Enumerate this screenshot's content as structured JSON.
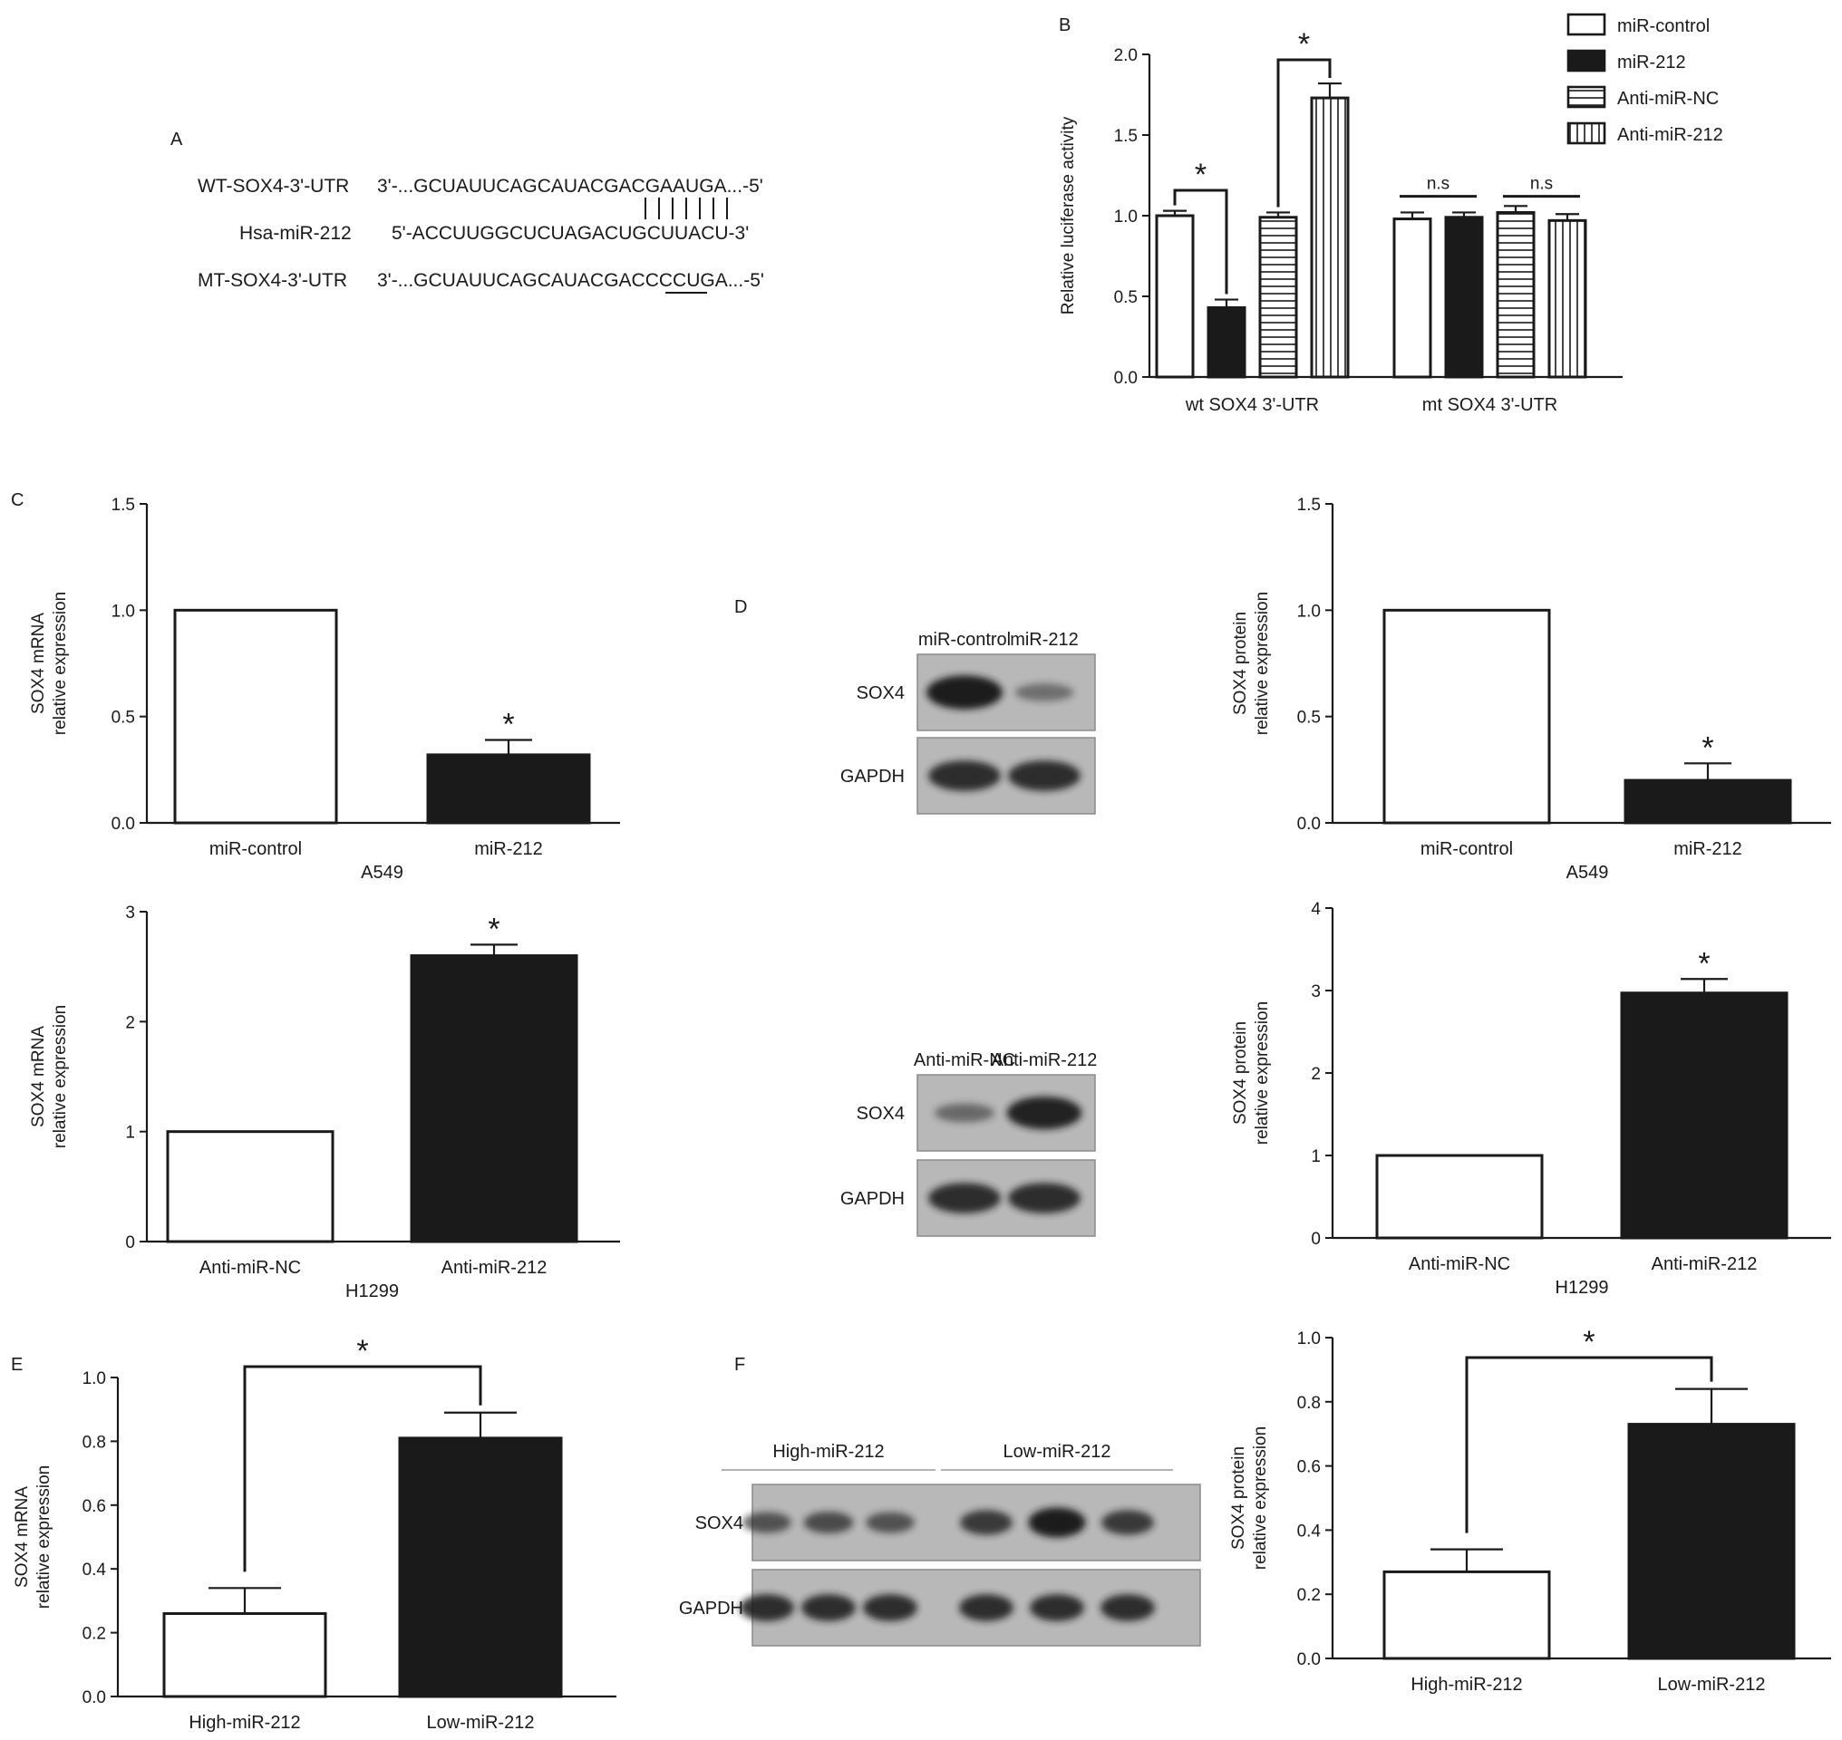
{
  "panel_letters": {
    "A": "A",
    "B": "B",
    "C": "C",
    "D": "D",
    "E": "E",
    "F": "F"
  },
  "panel_a": {
    "rows": [
      {
        "label": "WT-SOX4-3'-UTR",
        "sequence": "3'-...GCUAUUCAGCAUACGACGAAUGA...-5'"
      },
      {
        "label": "Hsa-miR-212",
        "sequence": "5'-ACCUUGGCUCUAGACUGCUUACU-3'"
      },
      {
        "label": "MT-SOX4-3'-UTR",
        "sequence": "3'-...GCUAUUCAGCAUACGACCCCUGA...-5'"
      }
    ],
    "pairing_marks": 7
  },
  "blots": {
    "d_top": {
      "lanes": [
        "miR-control",
        "miR-212"
      ],
      "rows": [
        "SOX4",
        "GAPDH"
      ],
      "sox4_band_intensity": [
        1.0,
        0.3
      ],
      "gapdh_band_intensity": [
        0.85,
        0.85
      ]
    },
    "d_bottom": {
      "lanes": [
        "Anti-miR-NC",
        "Anti-miR-212"
      ],
      "rows": [
        "SOX4",
        "GAPDH"
      ],
      "sox4_band_intensity": [
        0.35,
        0.95
      ],
      "gapdh_band_intensity": [
        0.85,
        0.85
      ]
    },
    "f": {
      "groups": [
        "High-miR-212",
        "Low-miR-212"
      ],
      "rows": [
        "SOX4",
        "GAPDH"
      ],
      "sox4_band_intensity": [
        0.55,
        0.6,
        0.55,
        0.75,
        1.0,
        0.75
      ],
      "gapdh_band_intensity": [
        0.85,
        0.85,
        0.85,
        0.85,
        0.85,
        0.85
      ]
    }
  },
  "colors": {
    "ink": "#1a1a1a",
    "blot_bg": "#b8b8b8",
    "band": "#1e1e1e"
  },
  "chart_data": [
    {
      "id": "B",
      "type": "bar",
      "categories": [
        "wt SOX4 3'-UTR",
        "mt SOX4 3'-UTR"
      ],
      "ylabel": "Relative luciferase activity",
      "ylim": [
        0,
        2.0
      ],
      "yticks": [
        "0.0",
        "0.5",
        "1.0",
        "1.5",
        "2.0"
      ],
      "series": [
        {
          "name": "miR-control",
          "fill": "white",
          "values": [
            1.0,
            0.98
          ],
          "errors": [
            0.03,
            0.04
          ]
        },
        {
          "name": "miR-212",
          "fill": "black",
          "values": [
            0.43,
            0.99
          ],
          "errors": [
            0.05,
            0.03
          ]
        },
        {
          "name": "Anti-miR-NC",
          "fill": "hstripe",
          "values": [
            0.99,
            1.02
          ],
          "errors": [
            0.03,
            0.04
          ]
        },
        {
          "name": "Anti-miR-212",
          "fill": "vstripe",
          "values": [
            1.73,
            0.97
          ],
          "errors": [
            0.09,
            0.04
          ]
        }
      ],
      "legend": "top-right",
      "annotations": [
        "*",
        "*",
        "n.s",
        "n.s"
      ]
    },
    {
      "id": "C-top",
      "type": "bar",
      "categories": [
        "miR-control",
        "miR-212"
      ],
      "group": "A549",
      "ylabel": [
        "SOX4 mRNA",
        "relative expression"
      ],
      "ylim": [
        0,
        1.5
      ],
      "yticks": [
        "0.0",
        "0.5",
        "1.0",
        "1.5"
      ],
      "values": [
        1.0,
        0.32
      ],
      "errors": [
        0,
        0.07
      ],
      "fills": [
        "white",
        "black"
      ],
      "annotations": [
        "*"
      ]
    },
    {
      "id": "C-bottom",
      "type": "bar",
      "categories": [
        "Anti-miR-NC",
        "Anti-miR-212"
      ],
      "group": "H1299",
      "ylabel": [
        "SOX4 mRNA",
        "relative expression"
      ],
      "ylim": [
        0,
        3
      ],
      "yticks": [
        "0",
        "1",
        "2",
        "3"
      ],
      "values": [
        1.0,
        2.6
      ],
      "errors": [
        0,
        0.1
      ],
      "fills": [
        "white",
        "black"
      ],
      "annotations": [
        "*"
      ]
    },
    {
      "id": "D-top",
      "type": "bar",
      "categories": [
        "miR-control",
        "miR-212"
      ],
      "group": "A549",
      "ylabel": [
        "SOX4 protein",
        "relative expression"
      ],
      "ylim": [
        0,
        1.5
      ],
      "yticks": [
        "0.0",
        "0.5",
        "1.0",
        "1.5"
      ],
      "values": [
        1.0,
        0.2
      ],
      "errors": [
        0,
        0.08
      ],
      "fills": [
        "white",
        "black"
      ],
      "annotations": [
        "*"
      ]
    },
    {
      "id": "D-bottom",
      "type": "bar",
      "categories": [
        "Anti-miR-NC",
        "Anti-miR-212"
      ],
      "group": "H1299",
      "ylabel": [
        "SOX4 protein",
        "relative expression"
      ],
      "ylim": [
        0,
        4
      ],
      "yticks": [
        "0",
        "1",
        "2",
        "3",
        "4"
      ],
      "values": [
        1.0,
        2.97
      ],
      "errors": [
        0,
        0.17
      ],
      "fills": [
        "white",
        "black"
      ],
      "annotations": [
        "*"
      ]
    },
    {
      "id": "E",
      "type": "bar",
      "categories": [
        "High-miR-212",
        "Low-miR-212"
      ],
      "ylabel": [
        "SOX4 mRNA",
        "relative expression"
      ],
      "ylim": [
        0,
        1.0
      ],
      "yticks": [
        "0.0",
        "0.2",
        "0.4",
        "0.6",
        "0.8",
        "1.0"
      ],
      "values": [
        0.26,
        0.81
      ],
      "errors": [
        0.08,
        0.08
      ],
      "fills": [
        "white",
        "black"
      ],
      "annotations": [
        "*"
      ]
    },
    {
      "id": "F",
      "type": "bar",
      "categories": [
        "High-miR-212",
        "Low-miR-212"
      ],
      "ylabel": [
        "SOX4 protein",
        "relative expression"
      ],
      "ylim": [
        0,
        1.0
      ],
      "yticks": [
        "0.0",
        "0.2",
        "0.4",
        "0.6",
        "0.8",
        "1.0"
      ],
      "values": [
        0.27,
        0.73
      ],
      "errors": [
        0.07,
        0.11
      ],
      "fills": [
        "white",
        "black"
      ],
      "annotations": [
        "*"
      ]
    }
  ]
}
